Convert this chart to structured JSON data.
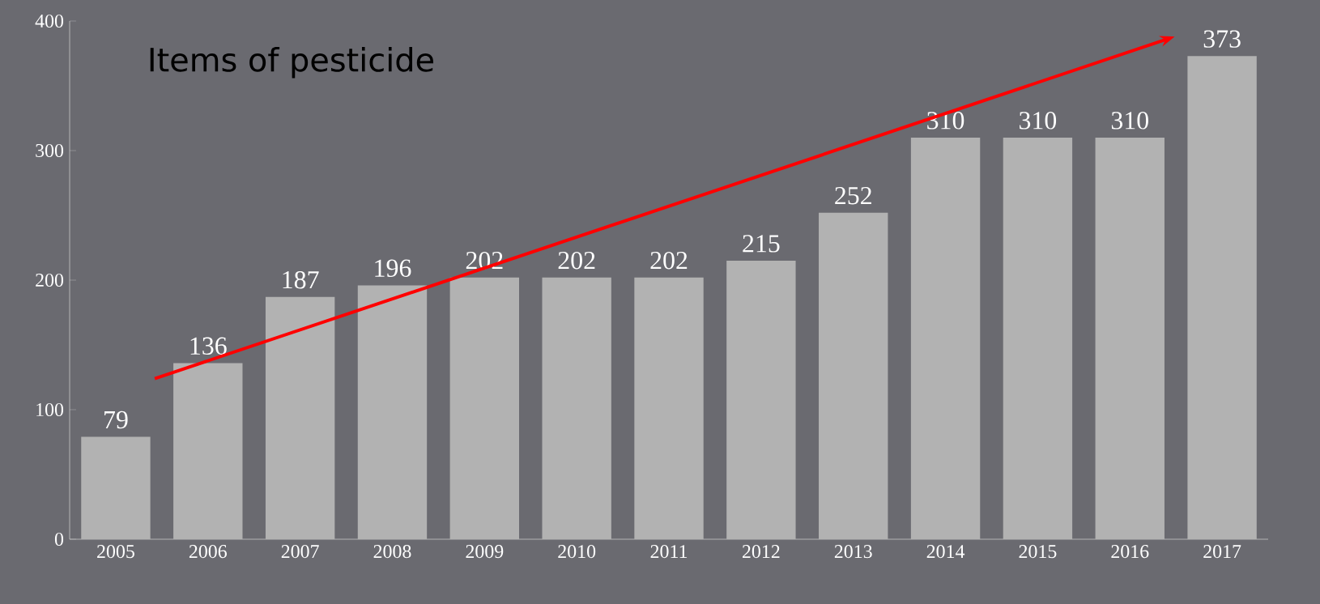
{
  "chart_data": {
    "type": "bar",
    "title": "Items of pesticide",
    "categories": [
      "2005",
      "2006",
      "2007",
      "2008",
      "2009",
      "2010",
      "2011",
      "2012",
      "2013",
      "2014",
      "2015",
      "2016",
      "2017"
    ],
    "values": [
      79,
      136,
      187,
      196,
      202,
      202,
      202,
      215,
      252,
      310,
      310,
      310,
      373
    ],
    "color": "#b2b2b2",
    "ylim": [
      0,
      400
    ],
    "yticks": [
      0,
      100,
      200,
      300,
      400
    ],
    "data_labels": true
  }
}
